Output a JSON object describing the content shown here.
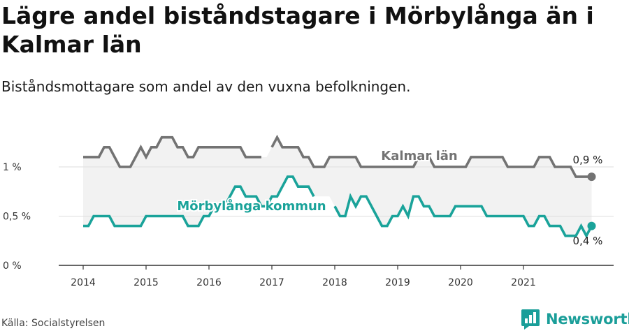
{
  "title": "Lägre andel biståndstagare i Mörbylånga än i Kalmar län",
  "subtitle": "Biståndsmottagare som andel av den vuxna befolkningen.",
  "source": "Källa: Socialstyrelsen",
  "brand": "Newsworthy",
  "colors": {
    "kalmar": "#737373",
    "morbylanga": "#1aa39a",
    "band": "#f2f2f2",
    "grid": "#dddddd",
    "brand": "#1a9e99"
  },
  "chart_data": {
    "type": "line",
    "x_unit": "month",
    "x_start": "2014-01",
    "ylim": [
      0,
      1.4
    ],
    "y_ticks": [
      {
        "value": 0,
        "label": "0 %"
      },
      {
        "value": 0.5,
        "label": "0,5 %"
      },
      {
        "value": 1,
        "label": "1 %"
      }
    ],
    "x_ticks": [
      {
        "value": 2014,
        "label": "2014"
      },
      {
        "value": 2015,
        "label": "2015"
      },
      {
        "value": 2016,
        "label": "2016"
      },
      {
        "value": 2017,
        "label": "2017"
      },
      {
        "value": 2018,
        "label": "2018"
      },
      {
        "value": 2019,
        "label": "2019"
      },
      {
        "value": 2020,
        "label": "2020"
      },
      {
        "value": 2021,
        "label": "2021"
      }
    ],
    "grid": true,
    "series": [
      {
        "name": "Kalmar län",
        "color": "#737373",
        "end_label": "0,9 %",
        "values": [
          1.1,
          1.1,
          1.1,
          1.1,
          1.2,
          1.2,
          1.1,
          1.0,
          1.0,
          1.0,
          1.1,
          1.2,
          1.1,
          1.2,
          1.2,
          1.3,
          1.3,
          1.3,
          1.2,
          1.2,
          1.1,
          1.1,
          1.2,
          1.2,
          1.2,
          1.2,
          1.2,
          1.2,
          1.2,
          1.2,
          1.2,
          1.1,
          1.1,
          1.1,
          1.1,
          null,
          1.2,
          1.3,
          1.2,
          1.2,
          1.2,
          1.2,
          1.1,
          1.1,
          1.0,
          1.0,
          1.0,
          1.1,
          1.1,
          1.1,
          1.1,
          1.1,
          1.1,
          1.0,
          1.0,
          1.0,
          1.0,
          1.0,
          1.0,
          1.0,
          1.0,
          1.0,
          1.0,
          1.0,
          1.1,
          1.1,
          1.1,
          1.0,
          1.0,
          1.0,
          1.0,
          1.0,
          1.0,
          1.0,
          1.1,
          1.1,
          1.1,
          1.1,
          1.1,
          1.1,
          1.1,
          1.0,
          1.0,
          1.0,
          1.0,
          1.0,
          1.0,
          1.1,
          1.1,
          1.1,
          1.0,
          1.0,
          1.0,
          1.0,
          0.9,
          0.9,
          0.9,
          0.9
        ]
      },
      {
        "name": "Mörbylånga kommun",
        "color": "#1aa39a",
        "end_label": "0,4 %",
        "values": [
          0.4,
          0.4,
          0.5,
          0.5,
          0.5,
          0.5,
          0.4,
          0.4,
          0.4,
          0.4,
          0.4,
          0.4,
          0.5,
          0.5,
          0.5,
          0.5,
          0.5,
          0.5,
          0.5,
          0.5,
          0.4,
          0.4,
          0.4,
          0.5,
          0.5,
          0.6,
          0.6,
          0.6,
          0.7,
          0.8,
          0.8,
          0.7,
          0.7,
          0.7,
          0.6,
          0.6,
          0.7,
          0.7,
          0.8,
          0.9,
          0.9,
          0.8,
          0.8,
          0.8,
          0.7,
          null,
          null,
          null,
          0.6,
          0.5,
          0.5,
          0.7,
          0.6,
          0.7,
          0.7,
          0.6,
          0.5,
          0.4,
          0.4,
          0.5,
          0.5,
          0.6,
          0.5,
          0.7,
          0.7,
          0.6,
          0.6,
          0.5,
          0.5,
          0.5,
          0.5,
          0.6,
          0.6,
          0.6,
          0.6,
          0.6,
          0.6,
          0.5,
          0.5,
          0.5,
          0.5,
          0.5,
          0.5,
          0.5,
          0.5,
          0.4,
          0.4,
          0.5,
          0.5,
          0.4,
          0.4,
          0.4,
          0.3,
          0.3,
          0.3,
          0.4,
          0.3,
          0.4
        ]
      }
    ]
  }
}
